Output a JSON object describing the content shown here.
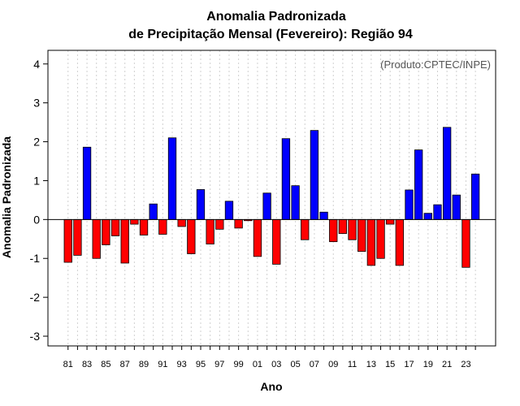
{
  "chart_data": {
    "type": "bar",
    "title_line1": "Anomalia Padronizada",
    "title_line2": "de Precipitação Mensal (Fevereiro): Região 94",
    "xlabel": "Ano",
    "ylabel": "Anomalia Padronizada",
    "credit": "(Produto:CPTEC/INPE)",
    "ylim": [
      -3.25,
      4.35
    ],
    "yticks": [
      -3,
      -2,
      -1,
      0,
      1,
      2,
      3,
      4
    ],
    "grid": true,
    "categories": [
      "81",
      "82",
      "83",
      "84",
      "85",
      "86",
      "87",
      "88",
      "89",
      "90",
      "91",
      "92",
      "93",
      "94",
      "95",
      "96",
      "97",
      "98",
      "99",
      "00",
      "01",
      "02",
      "03",
      "04",
      "05",
      "06",
      "07",
      "08",
      "09",
      "10",
      "11",
      "12",
      "13",
      "14",
      "15",
      "16",
      "17",
      "18",
      "19",
      "20",
      "21",
      "22",
      "23",
      "24"
    ],
    "xtick_labels": [
      "81",
      "83",
      "85",
      "87",
      "89",
      "91",
      "93",
      "95",
      "97",
      "99",
      "01",
      "03",
      "05",
      "07",
      "09",
      "11",
      "13",
      "15",
      "17",
      "19",
      "21",
      "23"
    ],
    "values": [
      -1.1,
      -0.92,
      1.86,
      -1.0,
      -0.65,
      -0.42,
      -1.12,
      -0.12,
      -0.4,
      0.4,
      -0.38,
      2.1,
      -0.18,
      -0.88,
      0.77,
      -0.63,
      -0.25,
      0.47,
      -0.22,
      -0.03,
      -0.95,
      0.68,
      -1.15,
      2.08,
      0.87,
      -0.52,
      2.29,
      0.19,
      -0.57,
      -0.36,
      -0.52,
      -0.82,
      -1.18,
      -1.0,
      -0.12,
      -1.18,
      0.76,
      1.79,
      0.16,
      0.38,
      2.37,
      0.63,
      -1.23,
      1.17
    ],
    "colors": {
      "positive": "#0000ff",
      "negative": "#ff0000",
      "border": "#000000"
    }
  }
}
